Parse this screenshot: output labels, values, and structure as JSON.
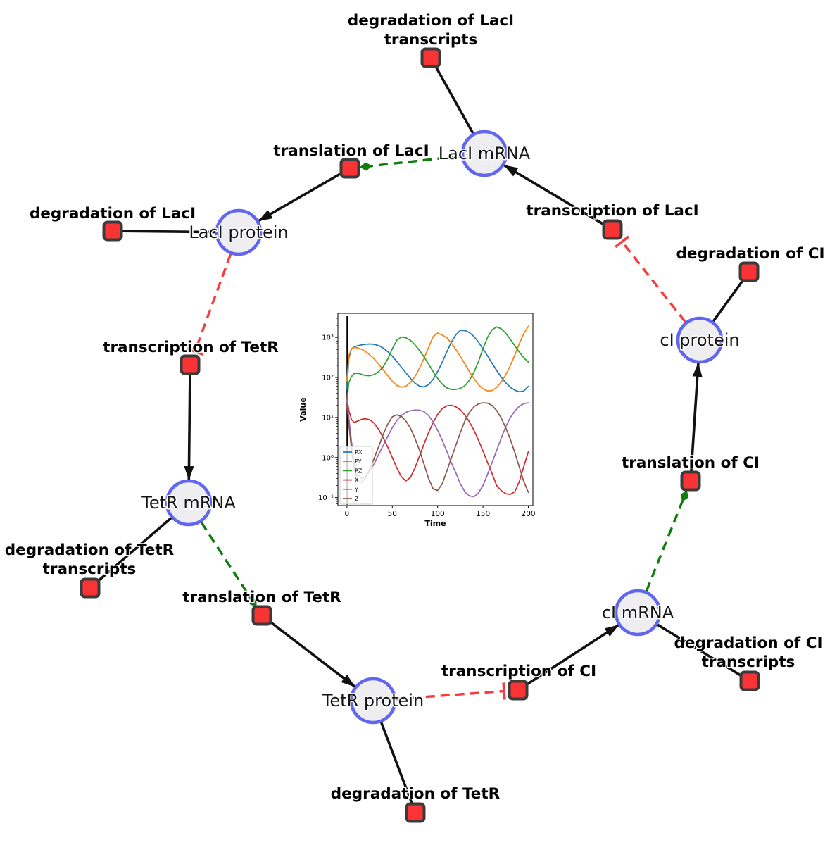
{
  "diagram": {
    "species": [
      {
        "id": "laci-mrna",
        "label": "LacI mRNA"
      },
      {
        "id": "laci-protein",
        "label": "LacI protein"
      },
      {
        "id": "tetr-mrna",
        "label": "TetR mRNA"
      },
      {
        "id": "tetr-protein",
        "label": "TetR protein"
      },
      {
        "id": "ci-mrna",
        "label": "cI mRNA"
      },
      {
        "id": "ci-protein",
        "label": "cI protein"
      }
    ],
    "reactions": [
      {
        "id": "degradation-of-laci-transcripts",
        "lines": [
          "degradation of LacI",
          "transcripts"
        ]
      },
      {
        "id": "translation-of-laci",
        "lines": [
          "translation of LacI"
        ]
      },
      {
        "id": "transcription-of-laci",
        "lines": [
          "transcription of LacI"
        ]
      },
      {
        "id": "degradation-of-laci",
        "lines": [
          "degradation of LacI"
        ]
      },
      {
        "id": "transcription-of-tetr",
        "lines": [
          "transcription of TetR"
        ]
      },
      {
        "id": "degradation-of-tetr-transcripts",
        "lines": [
          "degradation of TetR",
          "transcripts"
        ]
      },
      {
        "id": "translation-of-tetr",
        "lines": [
          "translation of TetR"
        ]
      },
      {
        "id": "degradation-of-tetr",
        "lines": [
          "degradation of TetR"
        ]
      },
      {
        "id": "transcription-of-ci",
        "lines": [
          "transcription of CI"
        ]
      },
      {
        "id": "degradation-of-ci-transcripts",
        "lines": [
          "degradation of CI",
          "transcripts"
        ]
      },
      {
        "id": "translation-of-ci",
        "lines": [
          "translation of CI"
        ]
      },
      {
        "id": "degradation-of-ci",
        "lines": [
          "degradation of CI"
        ]
      }
    ],
    "interactions": [
      {
        "from": "LacI mRNA",
        "to": "degradation of LacI transcripts",
        "type": "consumption-line"
      },
      {
        "from": "transcription of LacI",
        "to": "LacI mRNA",
        "type": "production-arrow"
      },
      {
        "from": "LacI mRNA",
        "to": "translation of LacI",
        "type": "modifier-green-dashed-diamond"
      },
      {
        "from": "translation of LacI",
        "to": "LacI protein",
        "type": "production-arrow"
      },
      {
        "from": "LacI protein",
        "to": "degradation of LacI",
        "type": "consumption-line"
      },
      {
        "from": "LacI protein",
        "to": "transcription of TetR",
        "type": "inhibition-red-dashed-tbar"
      },
      {
        "from": "transcription of TetR",
        "to": "TetR mRNA",
        "type": "production-arrow"
      },
      {
        "from": "TetR mRNA",
        "to": "degradation of TetR transcripts",
        "type": "consumption-line"
      },
      {
        "from": "TetR mRNA",
        "to": "translation of TetR",
        "type": "modifier-green-dashed-diamond"
      },
      {
        "from": "translation of TetR",
        "to": "TetR protein",
        "type": "production-arrow"
      },
      {
        "from": "TetR protein",
        "to": "degradation of TetR",
        "type": "consumption-line"
      },
      {
        "from": "TetR protein",
        "to": "transcription of CI",
        "type": "inhibition-red-dashed-tbar"
      },
      {
        "from": "transcription of CI",
        "to": "cI mRNA",
        "type": "production-arrow"
      },
      {
        "from": "cI mRNA",
        "to": "degradation of CI transcripts",
        "type": "consumption-line"
      },
      {
        "from": "cI mRNA",
        "to": "translation of CI",
        "type": "modifier-green-dashed-diamond"
      },
      {
        "from": "translation of CI",
        "to": "cI protein",
        "type": "production-arrow"
      },
      {
        "from": "cI protein",
        "to": "degradation of CI",
        "type": "consumption-line"
      },
      {
        "from": "cI protein",
        "to": "transcription of LacI",
        "type": "inhibition-red-dashed-tbar"
      }
    ],
    "colors": {
      "species_fill": "#eeeef1",
      "species_border": "#6166f0",
      "reaction_fill": "#fa3434",
      "reaction_border": "#3b3b3b",
      "edge_black": "#111111",
      "modifier_green": "#0e7d0e",
      "inhibition_red": "#fb3b3b"
    }
  },
  "chart_data": {
    "type": "line",
    "title": "",
    "xlabel": "Time",
    "ylabel": "Value",
    "y_scale": "log",
    "xlim": [
      -10,
      205
    ],
    "ylim_log10": [
      -1.2,
      3.6
    ],
    "x_ticks": [
      0,
      50,
      100,
      150,
      200
    ],
    "y_tick_exponents": [
      -1,
      0,
      1,
      2,
      3
    ],
    "y_tick_labels": [
      "10⁻¹",
      "10⁰",
      "10¹",
      "10²",
      "10³"
    ],
    "grid": false,
    "legend_position": "lower left",
    "initial_spike_t": 0.5,
    "x": [
      0,
      2,
      5,
      8,
      12,
      16,
      20,
      25,
      30,
      35,
      40,
      45,
      50,
      55,
      60,
      65,
      70,
      75,
      80,
      85,
      90,
      95,
      100,
      105,
      110,
      115,
      120,
      125,
      130,
      135,
      140,
      145,
      150,
      155,
      160,
      165,
      170,
      175,
      180,
      185,
      190,
      195,
      200
    ],
    "series": [
      {
        "name": "PX",
        "color": "#1f77b4",
        "values": [
          50,
          300,
          520,
          580,
          620,
          650,
          670,
          685,
          670,
          620,
          540,
          440,
          340,
          250,
          180,
          130,
          95,
          72,
          60,
          58,
          66,
          90,
          140,
          240,
          430,
          750,
          1150,
          1500,
          1480,
          1320,
          1050,
          760,
          520,
          345,
          225,
          150,
          102,
          74,
          57,
          48,
          44,
          46,
          60
        ]
      },
      {
        "name": "PY",
        "color": "#ff7f0e",
        "values": [
          80,
          350,
          520,
          560,
          545,
          505,
          450,
          370,
          290,
          215,
          155,
          110,
          80,
          63,
          57,
          60,
          75,
          105,
          170,
          300,
          560,
          1050,
          1280,
          1150,
          980,
          730,
          500,
          335,
          218,
          140,
          94,
          66,
          52,
          46,
          47,
          56,
          76,
          115,
          195,
          360,
          700,
          1250,
          1900
        ]
      },
      {
        "name": "PZ",
        "color": "#2ca02c",
        "values": [
          25,
          75,
          105,
          125,
          128,
          120,
          112,
          110,
          118,
          140,
          185,
          290,
          520,
          850,
          1020,
          980,
          840,
          650,
          470,
          325,
          215,
          140,
          95,
          68,
          55,
          50,
          50,
          53,
          62,
          85,
          135,
          250,
          520,
          1000,
          1550,
          1820,
          1650,
          1280,
          900,
          620,
          430,
          310,
          240
        ]
      },
      {
        "name": "X",
        "color": "#d62728",
        "values": [
          30,
          15,
          9,
          7.5,
          8.2,
          9,
          9.3,
          8.8,
          7.2,
          5,
          3.1,
          1.8,
          1,
          0.55,
          0.33,
          0.26,
          0.32,
          0.55,
          1.1,
          2.2,
          4.2,
          7.5,
          12,
          16.5,
          19.5,
          20.2,
          18.5,
          15.5,
          11.5,
          7.8,
          4.8,
          2.7,
          1.45,
          0.75,
          0.4,
          0.2,
          0.15,
          0.125,
          0.12,
          0.14,
          0.25,
          0.6,
          1.4
        ]
      },
      {
        "name": "Y",
        "color": "#9467bd",
        "values": [
          28,
          10,
          2.5,
          0.8,
          0.38,
          0.3,
          0.33,
          0.45,
          0.7,
          1.2,
          2,
          3.4,
          5.6,
          8.4,
          11.2,
          13.4,
          14.8,
          15.3,
          15.2,
          14,
          11.2,
          7.8,
          4.8,
          2.7,
          1.45,
          0.75,
          0.42,
          0.22,
          0.14,
          0.11,
          0.105,
          0.13,
          0.2,
          0.38,
          0.75,
          1.5,
          3,
          5.8,
          9.8,
          14.5,
          19,
          22.3,
          23.2
        ]
      },
      {
        "name": "Z",
        "color": "#8c564b",
        "values": [
          22,
          7,
          1.6,
          0.55,
          0.26,
          0.24,
          0.3,
          0.5,
          0.95,
          1.9,
          3.8,
          6.9,
          10.4,
          11.6,
          10.6,
          8.2,
          5.4,
          3,
          1.5,
          0.68,
          0.3,
          0.165,
          0.15,
          0.22,
          0.45,
          0.95,
          2,
          4.2,
          8.2,
          13.5,
          18.5,
          21.8,
          23.2,
          22.8,
          20,
          15,
          9.8,
          5.6,
          2.9,
          1.35,
          0.58,
          0.25,
          0.135
        ]
      }
    ]
  }
}
